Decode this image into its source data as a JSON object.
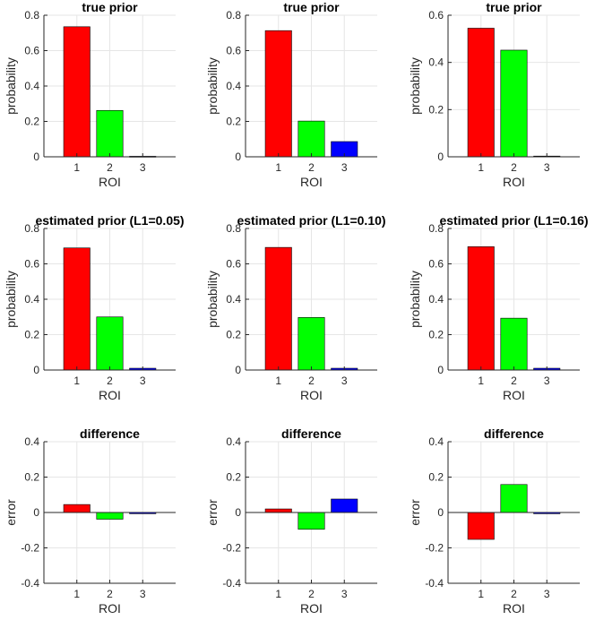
{
  "colors": {
    "bar_1": "#ff0000",
    "bar_2": "#00ff00",
    "bar_3": "#0000ff",
    "axes": "#262626",
    "grid": "#e6e6e6"
  },
  "chart_data": [
    {
      "type": "bar",
      "title": "true prior",
      "xlabel": "ROI",
      "ylabel": "probability",
      "categories": [
        "1",
        "2",
        "3"
      ],
      "values": [
        0.735,
        0.262,
        0.003
      ],
      "ylim": [
        0,
        0.8
      ],
      "yticks": [
        "0",
        "0.2",
        "0.4",
        "0.6",
        "0.8"
      ],
      "grid": true
    },
    {
      "type": "bar",
      "title": "true prior",
      "xlabel": "ROI",
      "ylabel": "probability",
      "categories": [
        "1",
        "2",
        "3"
      ],
      "values": [
        0.713,
        0.202,
        0.086
      ],
      "ylim": [
        0,
        0.8
      ],
      "yticks": [
        "0",
        "0.2",
        "0.4",
        "0.6",
        "0.8"
      ],
      "grid": true
    },
    {
      "type": "bar",
      "title": "true prior",
      "xlabel": "ROI",
      "ylabel": "probability",
      "categories": [
        "1",
        "2",
        "3"
      ],
      "values": [
        0.545,
        0.452,
        0.003
      ],
      "ylim": [
        0,
        0.6
      ],
      "yticks": [
        "0",
        "0.2",
        "0.4",
        "0.6"
      ],
      "grid": true
    },
    {
      "type": "bar",
      "title": "estimated prior (L1=0.05)",
      "xlabel": "ROI",
      "ylabel": "probability",
      "categories": [
        "1",
        "2",
        "3"
      ],
      "values": [
        0.69,
        0.3,
        0.01
      ],
      "ylim": [
        0,
        0.8
      ],
      "yticks": [
        "0",
        "0.2",
        "0.4",
        "0.6",
        "0.8"
      ],
      "grid": true
    },
    {
      "type": "bar",
      "title": "estimated prior (L1=0.10)",
      "xlabel": "ROI",
      "ylabel": "probability",
      "categories": [
        "1",
        "2",
        "3"
      ],
      "values": [
        0.693,
        0.297,
        0.01
      ],
      "ylim": [
        0,
        0.8
      ],
      "yticks": [
        "0",
        "0.2",
        "0.4",
        "0.6",
        "0.8"
      ],
      "grid": true
    },
    {
      "type": "bar",
      "title": "estimated prior (L1=0.16)",
      "xlabel": "ROI",
      "ylabel": "probability",
      "categories": [
        "1",
        "2",
        "3"
      ],
      "values": [
        0.697,
        0.293,
        0.01
      ],
      "ylim": [
        0,
        0.8
      ],
      "yticks": [
        "0",
        "0.2",
        "0.4",
        "0.6",
        "0.8"
      ],
      "grid": true
    },
    {
      "type": "bar",
      "title": "difference",
      "xlabel": "ROI",
      "ylabel": "error",
      "categories": [
        "1",
        "2",
        "3"
      ],
      "values": [
        0.045,
        -0.038,
        -0.007
      ],
      "ylim": [
        -0.4,
        0.4
      ],
      "yticks": [
        "-0.4",
        "-0.2",
        "0",
        "0.2",
        "0.4"
      ],
      "grid": true
    },
    {
      "type": "bar",
      "title": "difference",
      "xlabel": "ROI",
      "ylabel": "error",
      "categories": [
        "1",
        "2",
        "3"
      ],
      "values": [
        0.02,
        -0.095,
        0.076
      ],
      "ylim": [
        -0.4,
        0.4
      ],
      "yticks": [
        "-0.4",
        "-0.2",
        "0",
        "0.2",
        "0.4"
      ],
      "grid": true
    },
    {
      "type": "bar",
      "title": "difference",
      "xlabel": "ROI",
      "ylabel": "error",
      "categories": [
        "1",
        "2",
        "3"
      ],
      "values": [
        -0.152,
        0.158,
        -0.007
      ],
      "ylim": [
        -0.4,
        0.4
      ],
      "yticks": [
        "-0.4",
        "-0.2",
        "0",
        "0.2",
        "0.4"
      ],
      "grid": true
    }
  ]
}
